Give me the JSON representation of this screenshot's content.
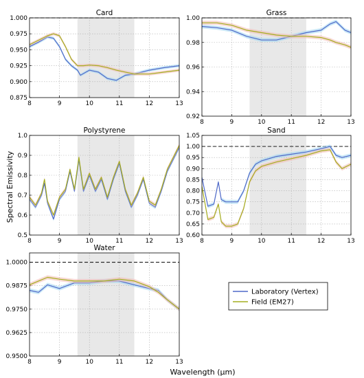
{
  "figure": {
    "ylabel": "Spectral Emissivity",
    "xlabel": "Wavelength (μm)",
    "shaded_band": [
      9.6,
      11.5
    ],
    "colors": {
      "lab": "#4f68c8",
      "field": "#a4ad1e",
      "lab_band": "#9fd6f0",
      "field_band": "#f2b9b0",
      "reference": "#000000",
      "shade": "#e8e8e8"
    },
    "legend": {
      "entries": [
        "Laboratory (Vertex)",
        "Field (EM27)"
      ],
      "placement": "right of Water panel"
    }
  },
  "chart_data": [
    {
      "type": "line",
      "title": "Card",
      "xlim": [
        8,
        13
      ],
      "ylim": [
        0.875,
        1.0
      ],
      "grid": true,
      "xticks": [
        "8",
        "9",
        "10",
        "11",
        "12",
        "13"
      ],
      "yticks": [
        "0.875",
        "0.900",
        "0.925",
        "0.950",
        "0.975",
        "1.000"
      ],
      "ytick_values": [
        0.875,
        0.9,
        0.925,
        0.95,
        0.975,
        1.0
      ],
      "reference": 1.0,
      "series": [
        {
          "name": "Laboratory (Vertex)",
          "x": [
            8.0,
            8.3,
            8.6,
            8.8,
            9.0,
            9.2,
            9.4,
            9.6,
            9.7,
            10.0,
            10.3,
            10.6,
            10.9,
            11.2,
            11.5,
            12.0,
            12.5,
            13.0
          ],
          "y": [
            0.955,
            0.962,
            0.97,
            0.968,
            0.955,
            0.935,
            0.925,
            0.918,
            0.91,
            0.918,
            0.915,
            0.905,
            0.902,
            0.91,
            0.912,
            0.918,
            0.922,
            0.925
          ]
        },
        {
          "name": "Field (EM27)",
          "x": [
            8.0,
            8.3,
            8.6,
            8.8,
            9.0,
            9.2,
            9.4,
            9.6,
            9.8,
            10.0,
            10.3,
            10.6,
            10.9,
            11.2,
            11.5,
            12.0,
            12.5,
            13.0
          ],
          "y": [
            0.958,
            0.965,
            0.972,
            0.975,
            0.972,
            0.955,
            0.935,
            0.925,
            0.925,
            0.926,
            0.925,
            0.922,
            0.918,
            0.915,
            0.912,
            0.912,
            0.915,
            0.918
          ]
        }
      ]
    },
    {
      "type": "line",
      "title": "Grass",
      "xlim": [
        8,
        13
      ],
      "ylim": [
        0.92,
        1.0
      ],
      "grid": true,
      "xticks": [
        "8",
        "9",
        "10",
        "11",
        "12",
        "13"
      ],
      "yticks": [
        "0.92",
        "0.94",
        "0.96",
        "0.98",
        "1.00"
      ],
      "ytick_values": [
        0.92,
        0.94,
        0.96,
        0.98,
        1.0
      ],
      "reference": 1.0,
      "series": [
        {
          "name": "Laboratory (Vertex)",
          "x": [
            8.0,
            8.5,
            9.0,
            9.5,
            10.0,
            10.5,
            11.0,
            11.5,
            12.0,
            12.3,
            12.5,
            12.8,
            13.0
          ],
          "y": [
            0.993,
            0.992,
            0.99,
            0.985,
            0.982,
            0.982,
            0.985,
            0.988,
            0.99,
            0.995,
            0.997,
            0.99,
            0.988
          ]
        },
        {
          "name": "Field (EM27)",
          "x": [
            8.0,
            8.5,
            9.0,
            9.5,
            10.0,
            10.5,
            11.0,
            11.5,
            12.0,
            12.3,
            12.5,
            12.8,
            13.0
          ],
          "y": [
            0.996,
            0.996,
            0.994,
            0.99,
            0.988,
            0.986,
            0.985,
            0.985,
            0.984,
            0.982,
            0.98,
            0.978,
            0.976
          ]
        }
      ]
    },
    {
      "type": "line",
      "title": "Polystyrene",
      "xlim": [
        8,
        13
      ],
      "ylim": [
        0.5,
        1.0
      ],
      "grid": true,
      "xticks": [
        "8",
        "9",
        "10",
        "11",
        "12",
        "13"
      ],
      "yticks": [
        "0.5",
        "0.6",
        "0.7",
        "0.8",
        "0.9",
        "1.0"
      ],
      "ytick_values": [
        0.5,
        0.6,
        0.7,
        0.8,
        0.9,
        1.0
      ],
      "series": [
        {
          "name": "Laboratory (Vertex)",
          "x": [
            8.0,
            8.2,
            8.4,
            8.5,
            8.6,
            8.8,
            9.0,
            9.2,
            9.35,
            9.5,
            9.65,
            9.8,
            10.0,
            10.2,
            10.4,
            10.6,
            10.8,
            11.0,
            11.2,
            11.4,
            11.6,
            11.8,
            11.9,
            12.0,
            12.2,
            12.4,
            12.6,
            12.8,
            13.0
          ],
          "y": [
            0.68,
            0.64,
            0.7,
            0.76,
            0.66,
            0.58,
            0.68,
            0.72,
            0.82,
            0.72,
            0.88,
            0.72,
            0.8,
            0.72,
            0.78,
            0.68,
            0.78,
            0.86,
            0.72,
            0.64,
            0.7,
            0.78,
            0.72,
            0.66,
            0.64,
            0.72,
            0.82,
            0.88,
            0.94
          ]
        },
        {
          "name": "Field (EM27)",
          "x": [
            8.0,
            8.2,
            8.4,
            8.5,
            8.6,
            8.8,
            9.0,
            9.2,
            9.35,
            9.5,
            9.65,
            9.8,
            10.0,
            10.2,
            10.4,
            10.6,
            10.8,
            11.0,
            11.2,
            11.4,
            11.6,
            11.8,
            11.9,
            12.0,
            12.2,
            12.4,
            12.6,
            12.8,
            13.0
          ],
          "y": [
            0.69,
            0.65,
            0.71,
            0.78,
            0.67,
            0.6,
            0.69,
            0.73,
            0.83,
            0.73,
            0.89,
            0.73,
            0.81,
            0.73,
            0.79,
            0.69,
            0.79,
            0.87,
            0.73,
            0.65,
            0.71,
            0.79,
            0.73,
            0.67,
            0.65,
            0.73,
            0.83,
            0.89,
            0.95
          ]
        }
      ]
    },
    {
      "type": "line",
      "title": "Sand",
      "xlim": [
        8,
        13
      ],
      "ylim": [
        0.6,
        1.05
      ],
      "grid": true,
      "xticks": [
        "8",
        "9",
        "10",
        "11",
        "12",
        "13"
      ],
      "yticks": [
        "0.60",
        "0.65",
        "0.70",
        "0.75",
        "0.80",
        "0.85",
        "0.90",
        "0.95",
        "1.00",
        "1.05"
      ],
      "ytick_values": [
        0.6,
        0.65,
        0.7,
        0.75,
        0.8,
        0.85,
        0.9,
        0.95,
        1.0,
        1.05
      ],
      "reference": 1.0,
      "series": [
        {
          "name": "Laboratory (Vertex)",
          "x": [
            8.0,
            8.2,
            8.4,
            8.55,
            8.65,
            8.8,
            9.0,
            9.2,
            9.4,
            9.6,
            9.8,
            10.0,
            10.5,
            11.0,
            11.5,
            12.0,
            12.3,
            12.5,
            12.7,
            13.0
          ],
          "y": [
            0.86,
            0.73,
            0.74,
            0.84,
            0.76,
            0.75,
            0.75,
            0.75,
            0.8,
            0.88,
            0.92,
            0.935,
            0.955,
            0.965,
            0.975,
            0.99,
            1.0,
            0.96,
            0.95,
            0.96
          ]
        },
        {
          "name": "Field (EM27)",
          "x": [
            8.0,
            8.2,
            8.4,
            8.55,
            8.65,
            8.8,
            9.0,
            9.2,
            9.4,
            9.6,
            9.8,
            10.0,
            10.5,
            11.0,
            11.5,
            12.0,
            12.3,
            12.5,
            12.7,
            13.0
          ],
          "y": [
            0.82,
            0.67,
            0.68,
            0.74,
            0.66,
            0.64,
            0.64,
            0.65,
            0.72,
            0.84,
            0.89,
            0.91,
            0.93,
            0.945,
            0.96,
            0.98,
            0.985,
            0.93,
            0.9,
            0.92
          ]
        }
      ]
    },
    {
      "type": "line",
      "title": "Water",
      "xlim": [
        8,
        13
      ],
      "ylim": [
        0.95,
        1.005
      ],
      "grid": true,
      "xticks": [
        "8",
        "9",
        "10",
        "11",
        "12",
        "13"
      ],
      "yticks": [
        "0.9500",
        "0.9625",
        "0.9750",
        "0.9875",
        "1.0000"
      ],
      "ytick_values": [
        0.95,
        0.9625,
        0.975,
        0.9875,
        1.0
      ],
      "reference": 1.0,
      "series": [
        {
          "name": "Laboratory (Vertex)",
          "x": [
            8.0,
            8.3,
            8.6,
            9.0,
            9.5,
            10.0,
            10.5,
            11.0,
            11.5,
            12.0,
            12.3,
            12.6,
            13.0
          ],
          "y": [
            0.985,
            0.984,
            0.988,
            0.986,
            0.989,
            0.989,
            0.99,
            0.99,
            0.988,
            0.986,
            0.985,
            0.98,
            0.975
          ]
        },
        {
          "name": "Field (EM27)",
          "x": [
            8.0,
            8.3,
            8.6,
            9.0,
            9.5,
            10.0,
            10.5,
            11.0,
            11.5,
            12.0,
            12.3,
            12.6,
            13.0
          ],
          "y": [
            0.988,
            0.99,
            0.992,
            0.991,
            0.99,
            0.99,
            0.99,
            0.991,
            0.99,
            0.987,
            0.984,
            0.98,
            0.975
          ]
        }
      ]
    }
  ]
}
